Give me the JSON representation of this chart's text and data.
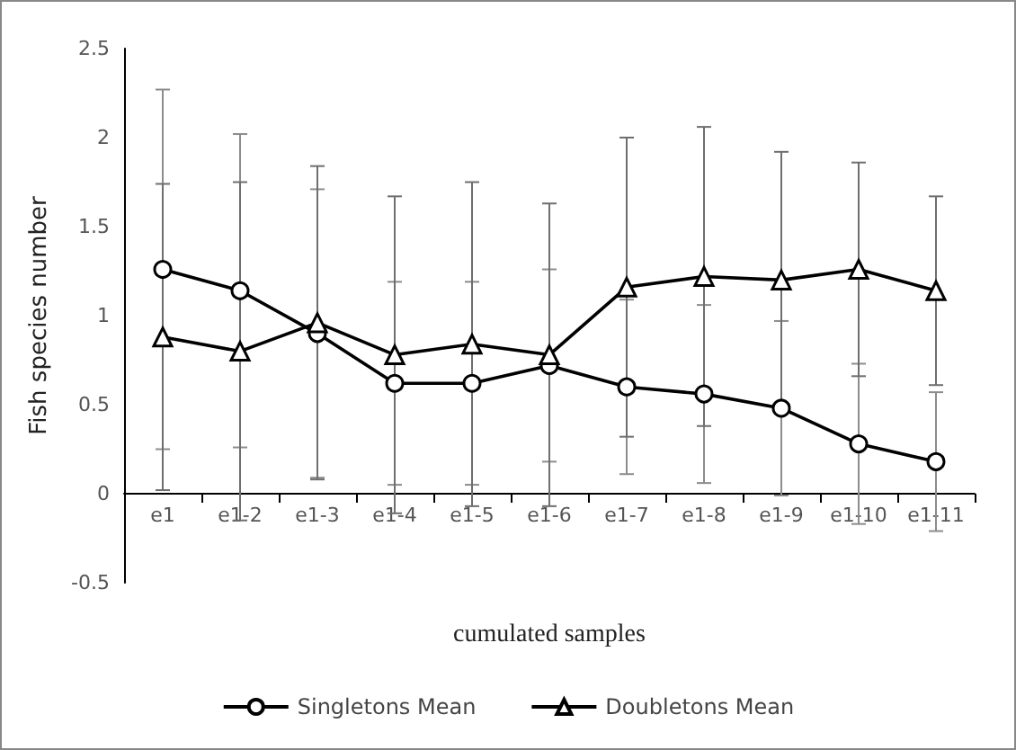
{
  "chart_data": {
    "type": "line",
    "xlabel": "cumulated samples",
    "ylabel": "Fish species number",
    "categories": [
      "e1",
      "e1-2",
      "e1-3",
      "e1-4",
      "e1-5",
      "e1-6",
      "e1-7",
      "e1-8",
      "e1-9",
      "e1-10",
      "e1-11"
    ],
    "series": [
      {
        "name": "Singletons Mean",
        "color": "#000000",
        "marker": "circle",
        "values": [
          1.26,
          1.14,
          0.9,
          0.62,
          0.62,
          0.72,
          0.6,
          0.56,
          0.48,
          0.28,
          0.18
        ],
        "errors": [
          1.01,
          0.88,
          0.81,
          0.57,
          0.57,
          0.54,
          0.49,
          0.5,
          0.49,
          0.45,
          0.39
        ]
      },
      {
        "name": "Doubletons Mean",
        "color": "#000000",
        "marker": "triangle",
        "values": [
          0.88,
          0.8,
          0.96,
          0.78,
          0.84,
          0.78,
          1.16,
          1.22,
          1.2,
          1.26,
          1.14
        ],
        "errors": [
          0.86,
          0.95,
          0.88,
          0.89,
          0.91,
          0.85,
          0.84,
          0.84,
          0.72,
          0.6,
          0.53
        ]
      }
    ],
    "ylim": [
      -0.5,
      2.5
    ],
    "yticks": [
      -0.5,
      0,
      0.5,
      1,
      1.5,
      2,
      2.5
    ],
    "grid": false,
    "legend": "bottom",
    "line_style": "solid"
  }
}
